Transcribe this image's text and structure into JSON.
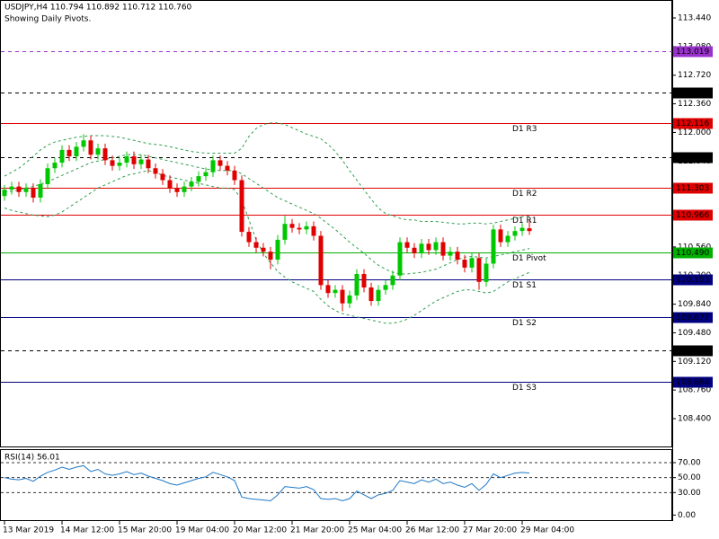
{
  "chart_data": {
    "type": "candlestick",
    "title": "USDJPY,H4  110.794 110.892 110.712 110.760",
    "subtitle": "Showing Daily Pivots.",
    "categories": [
      "13 Mar 2019",
      null,
      null,
      null,
      null,
      null,
      null,
      null,
      "14 Mar 12:00",
      null,
      null,
      null,
      null,
      null,
      null,
      null,
      "15 Mar 20:00",
      null,
      null,
      null,
      null,
      null,
      null,
      null,
      "19 Mar 04:00",
      null,
      null,
      null,
      null,
      null,
      null,
      null,
      "20 Mar 12:00",
      null,
      null,
      null,
      null,
      null,
      null,
      null,
      "21 Mar 20:00",
      null,
      null,
      null,
      null,
      null,
      null,
      null,
      "25 Mar 04:00",
      null,
      null,
      null,
      null,
      null,
      null,
      null,
      "26 Mar 12:00",
      null,
      null,
      null,
      null,
      null,
      null,
      null,
      "27 Mar 20:00",
      null,
      null,
      null,
      null,
      null,
      null,
      null,
      "29 Mar 04:00",
      null
    ],
    "open": [
      111.2,
      111.28,
      111.32,
      111.25,
      111.3,
      111.18,
      111.35,
      111.55,
      111.62,
      111.78,
      111.7,
      111.82,
      111.9,
      111.72,
      111.8,
      111.65,
      111.58,
      111.62,
      111.7,
      111.6,
      111.66,
      111.55,
      111.48,
      111.4,
      111.3,
      111.25,
      111.32,
      111.38,
      111.45,
      111.5,
      111.65,
      111.58,
      111.52,
      111.4,
      110.75,
      110.62,
      110.55,
      110.5,
      110.4,
      110.65,
      110.85,
      110.8,
      110.78,
      110.82,
      110.7,
      110.08,
      109.98,
      110.02,
      109.85,
      109.95,
      110.22,
      110.05,
      109.88,
      110.02,
      110.08,
      110.2,
      110.62,
      110.55,
      110.48,
      110.6,
      110.52,
      110.62,
      110.45,
      110.5,
      110.4,
      110.3,
      110.42,
      110.12,
      110.35,
      110.78,
      110.62,
      110.7,
      110.76,
      110.794
    ],
    "high": [
      111.34,
      111.38,
      111.38,
      111.36,
      111.36,
      111.41,
      111.61,
      111.68,
      111.84,
      111.84,
      111.88,
      111.98,
      111.96,
      111.86,
      111.86,
      111.71,
      111.68,
      111.76,
      111.76,
      111.72,
      111.72,
      111.61,
      111.54,
      111.46,
      111.36,
      111.38,
      111.44,
      111.51,
      111.56,
      111.71,
      111.71,
      111.64,
      111.58,
      111.46,
      110.81,
      110.68,
      110.61,
      110.56,
      110.71,
      110.95,
      110.91,
      110.86,
      110.88,
      110.88,
      110.76,
      110.14,
      110.08,
      110.08,
      110.01,
      110.28,
      110.28,
      110.11,
      110.08,
      110.14,
      110.26,
      110.68,
      110.68,
      110.61,
      110.66,
      110.66,
      110.68,
      110.68,
      110.56,
      110.56,
      110.46,
      110.48,
      110.48,
      110.41,
      110.84,
      110.84,
      110.76,
      110.82,
      110.86,
      110.892
    ],
    "low": [
      111.14,
      111.22,
      111.19,
      111.19,
      111.12,
      111.12,
      111.29,
      111.49,
      111.56,
      111.64,
      111.64,
      111.76,
      111.66,
      111.66,
      111.59,
      111.52,
      111.52,
      111.56,
      111.54,
      111.54,
      111.49,
      111.42,
      111.34,
      111.24,
      111.19,
      111.19,
      111.26,
      111.32,
      111.39,
      111.44,
      111.52,
      111.46,
      111.34,
      110.69,
      110.56,
      110.49,
      110.44,
      110.28,
      110.34,
      110.59,
      110.74,
      110.72,
      110.72,
      110.64,
      110.02,
      109.92,
      109.92,
      109.75,
      109.79,
      109.89,
      109.99,
      109.82,
      109.82,
      109.96,
      110.02,
      110.14,
      110.49,
      110.42,
      110.42,
      110.46,
      110.46,
      110.39,
      110.39,
      110.34,
      110.24,
      110.24,
      110.02,
      110.06,
      110.29,
      110.56,
      110.56,
      110.64,
      110.7,
      110.712
    ],
    "close": [
      111.28,
      111.32,
      111.25,
      111.3,
      111.18,
      111.35,
      111.55,
      111.62,
      111.78,
      111.7,
      111.82,
      111.9,
      111.72,
      111.8,
      111.65,
      111.58,
      111.62,
      111.7,
      111.6,
      111.66,
      111.55,
      111.48,
      111.4,
      111.3,
      111.25,
      111.32,
      111.38,
      111.45,
      111.5,
      111.65,
      111.58,
      111.52,
      111.4,
      110.75,
      110.62,
      110.55,
      110.5,
      110.4,
      110.65,
      110.85,
      110.8,
      110.78,
      110.82,
      110.7,
      110.08,
      109.98,
      110.02,
      109.85,
      109.95,
      110.22,
      110.05,
      109.88,
      110.02,
      110.08,
      110.2,
      110.62,
      110.55,
      110.48,
      110.6,
      110.52,
      110.62,
      110.45,
      110.5,
      110.4,
      110.3,
      110.42,
      110.12,
      110.35,
      110.78,
      110.62,
      110.7,
      110.76,
      110.8,
      110.76
    ],
    "up_color": "#00c800",
    "down_color": "#e00000",
    "bands": {
      "color": "#2e9e4e",
      "upper": [
        111.45,
        111.5,
        111.55,
        111.62,
        111.7,
        111.78,
        111.84,
        111.88,
        111.9,
        111.92,
        111.94,
        111.95,
        111.96,
        111.96,
        111.96,
        111.95,
        111.94,
        111.92,
        111.9,
        111.88,
        111.86,
        111.85,
        111.84,
        111.82,
        111.8,
        111.78,
        111.76,
        111.75,
        111.74,
        111.74,
        111.74,
        111.74,
        111.74,
        111.8,
        111.95,
        112.05,
        112.1,
        112.12,
        112.12,
        112.1,
        112.06,
        112.02,
        111.98,
        111.95,
        111.92,
        111.85,
        111.76,
        111.65,
        111.52,
        111.4,
        111.28,
        111.16,
        111.05,
        110.98,
        110.95,
        110.92,
        110.9,
        110.9,
        110.88,
        110.88,
        110.88,
        110.87,
        110.86,
        110.85,
        110.85,
        110.86,
        110.86,
        110.85,
        110.86,
        110.88,
        110.9,
        110.92,
        110.94,
        110.95
      ],
      "middle": [
        111.25,
        111.26,
        111.28,
        111.3,
        111.32,
        111.35,
        111.38,
        111.42,
        111.46,
        111.5,
        111.54,
        111.58,
        111.62,
        111.64,
        111.66,
        111.68,
        111.7,
        111.72,
        111.72,
        111.72,
        111.7,
        111.68,
        111.66,
        111.64,
        111.62,
        111.6,
        111.58,
        111.56,
        111.54,
        111.53,
        111.52,
        111.52,
        111.52,
        111.48,
        111.42,
        111.36,
        111.3,
        111.24,
        111.18,
        111.14,
        111.1,
        111.06,
        111.02,
        110.98,
        110.92,
        110.85,
        110.78,
        110.7,
        110.62,
        110.55,
        110.48,
        110.4,
        110.33,
        110.28,
        110.24,
        110.22,
        110.22,
        110.23,
        110.24,
        110.26,
        110.28,
        110.32,
        110.36,
        110.4,
        110.43,
        110.44,
        110.43,
        110.42,
        110.44,
        110.46,
        110.48,
        110.5,
        110.52,
        110.54
      ],
      "lower": [
        111.05,
        111.02,
        111.0,
        110.98,
        110.96,
        110.95,
        110.94,
        110.96,
        111.0,
        111.06,
        111.12,
        111.18,
        111.24,
        111.3,
        111.34,
        111.38,
        111.42,
        111.46,
        111.48,
        111.5,
        111.52,
        111.5,
        111.46,
        111.44,
        111.42,
        111.4,
        111.38,
        111.36,
        111.34,
        111.32,
        111.3,
        111.3,
        111.28,
        111.15,
        110.9,
        110.65,
        110.48,
        110.36,
        110.25,
        110.18,
        110.12,
        110.08,
        110.04,
        110.0,
        109.9,
        109.82,
        109.76,
        109.72,
        109.7,
        109.68,
        109.66,
        109.64,
        109.62,
        109.6,
        109.6,
        109.62,
        109.65,
        109.7,
        109.76,
        109.82,
        109.88,
        109.92,
        109.96,
        110.0,
        110.02,
        110.02,
        110.0,
        109.98,
        110.0,
        110.06,
        110.12,
        110.16,
        110.2,
        110.24
      ]
    },
    "ylim": [
      108.05,
      113.666
    ],
    "yticks": [
      {
        "value": 108.4,
        "label": "108.400"
      },
      {
        "value": 108.76,
        "label": "108.760"
      },
      {
        "value": 109.12,
        "label": "109.120"
      },
      {
        "value": 109.48,
        "label": "109.480"
      },
      {
        "value": 109.84,
        "label": "109.840"
      },
      {
        "value": 110.2,
        "label": "110.200"
      },
      {
        "value": 110.56,
        "label": "110.560"
      },
      {
        "value": 110.92,
        "label": "110.920"
      },
      {
        "value": 111.28,
        "label": "111.280"
      },
      {
        "value": 111.64,
        "label": "111.640"
      },
      {
        "value": 112,
        "label": "112.000"
      },
      {
        "value": 112.36,
        "label": "112.360"
      },
      {
        "value": 112.72,
        "label": "112.720"
      },
      {
        "value": 113.08,
        "label": "113.080"
      },
      {
        "value": 113.44,
        "label": "113.440"
      }
    ],
    "levels": [
      {
        "value": 113.019,
        "color": "#9932cc",
        "style": "dashed"
      },
      {
        "value": 112.5,
        "label": "112.500",
        "color": "#000000",
        "style": "dashed"
      },
      {
        "value": 112.116,
        "name": "D1 R3",
        "color": "#e00000",
        "style": "solid"
      },
      {
        "value": 111.691,
        "color": "#000000",
        "style": "dashed"
      },
      {
        "value": 111.303,
        "name": "D1 R2",
        "color": "#e00000",
        "style": "solid"
      },
      {
        "value": 110.966,
        "name": "D1 R1",
        "color": "#e00000",
        "style": "solid"
      },
      {
        "value": 110.49,
        "label": "110.490",
        "name": "D1 Pivot",
        "color": "#00b000",
        "style": "solid"
      },
      {
        "value": 110.153,
        "name": "D1 S1",
        "color": "#000080",
        "style": "solid"
      },
      {
        "value": 109.677,
        "name": "D1 S2",
        "color": "#000080",
        "style": "solid"
      },
      {
        "value": 109.257,
        "color": "#000000",
        "style": "dashed"
      },
      {
        "value": 108.864,
        "name": "D1 S3",
        "color": "#000080",
        "style": "solid"
      }
    ],
    "rsi": {
      "label": "RSI(14) 56.01",
      "color": "#1e78c8",
      "values": [
        50,
        48,
        47,
        49,
        45,
        52,
        57,
        60,
        64,
        61,
        64,
        66,
        58,
        61,
        55,
        53,
        55,
        58,
        54,
        56,
        52,
        49,
        46,
        42,
        40,
        43,
        46,
        49,
        51,
        57,
        54,
        51,
        46,
        24,
        22,
        21,
        20,
        19,
        27,
        38,
        37,
        36,
        38,
        34,
        22,
        21,
        22,
        19,
        22,
        32,
        27,
        22,
        27,
        29,
        33,
        46,
        44,
        42,
        47,
        44,
        48,
        42,
        44,
        40,
        37,
        42,
        33,
        41,
        55,
        50,
        53,
        56,
        57,
        56.01
      ],
      "ylim": [
        -8,
        88
      ],
      "yticks": [
        {
          "value": 0,
          "label": "0.00"
        },
        {
          "value": 30,
          "label": "30.00"
        },
        {
          "value": 50,
          "label": "50.00"
        },
        {
          "value": 70,
          "label": "70.00"
        }
      ],
      "levels": [
        30,
        50,
        70
      ]
    }
  }
}
